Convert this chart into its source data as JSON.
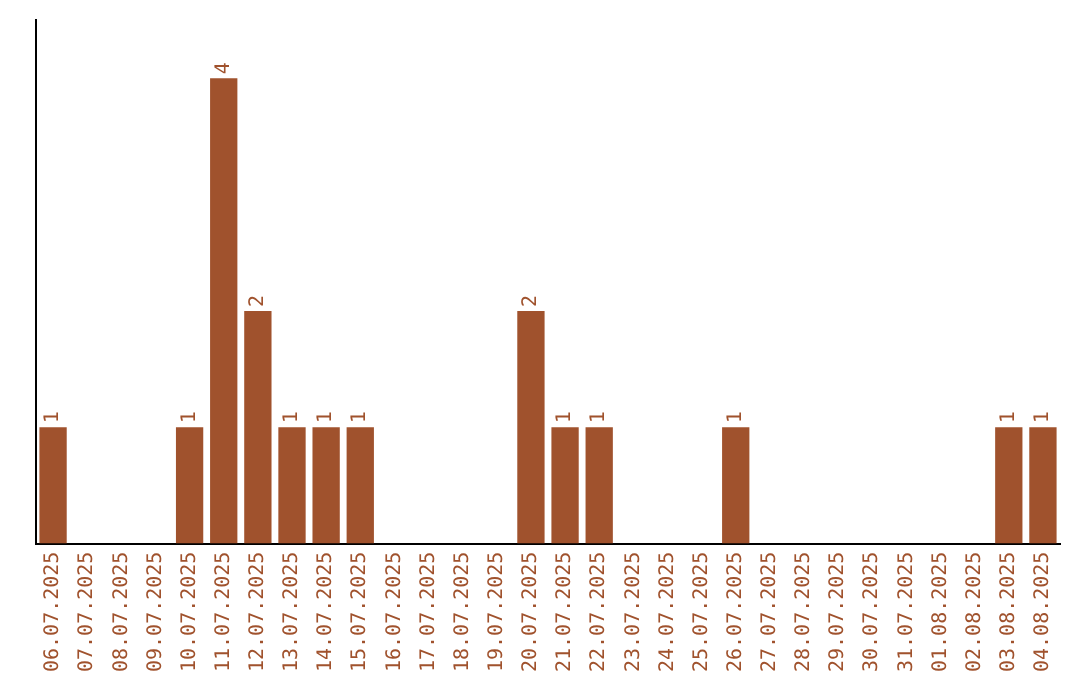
{
  "chart_data": {
    "type": "bar",
    "categories": [
      "06.07.2025",
      "07.07.2025",
      "08.07.2025",
      "09.07.2025",
      "10.07.2025",
      "11.07.2025",
      "12.07.2025",
      "13.07.2025",
      "14.07.2025",
      "15.07.2025",
      "16.07.2025",
      "17.07.2025",
      "18.07.2025",
      "19.07.2025",
      "20.07.2025",
      "21.07.2025",
      "22.07.2025",
      "23.07.2025",
      "24.07.2025",
      "25.07.2025",
      "26.07.2025",
      "27.07.2025",
      "28.07.2025",
      "29.07.2025",
      "30.07.2025",
      "31.07.2025",
      "01.08.2025",
      "02.08.2025",
      "03.08.2025",
      "04.08.2025"
    ],
    "values": [
      1,
      0,
      0,
      0,
      1,
      4,
      2,
      1,
      1,
      1,
      0,
      0,
      0,
      0,
      2,
      1,
      1,
      0,
      0,
      0,
      1,
      0,
      0,
      0,
      0,
      0,
      0,
      0,
      1,
      1
    ],
    "value_labels": [
      "1",
      null,
      null,
      null,
      "1",
      "4",
      "2",
      "1",
      "1",
      "1",
      null,
      null,
      null,
      null,
      "2",
      "1",
      "1",
      null,
      null,
      null,
      "1",
      null,
      null,
      null,
      null,
      null,
      null,
      null,
      "1",
      "1"
    ],
    "color": "#a0522d",
    "grid": false,
    "legend": false,
    "tick_labels": "x"
  }
}
